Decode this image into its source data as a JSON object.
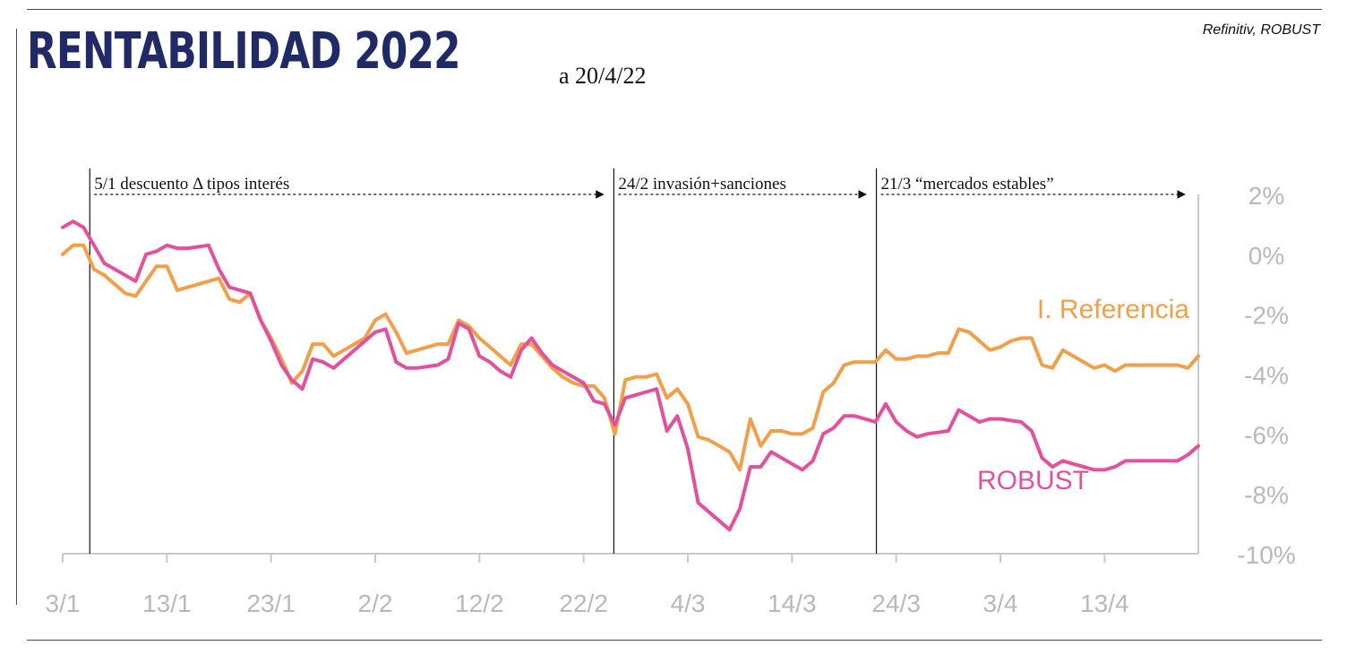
{
  "header": {
    "title": "RENTABILIDAD 2022",
    "subtitle": "a 20/4/22",
    "source": "Refinitiv, ROBUST"
  },
  "colors": {
    "referencia": "#f0a04b",
    "robust": "#e2529c",
    "axis": "#c9c9c9",
    "tick_text": "#b9b9b9",
    "title": "#1f2a66"
  },
  "chart_data": {
    "type": "line",
    "title": "RENTABILIDAD 2022",
    "xlabel": "",
    "ylabel": "",
    "x_tick_labels": [
      "3/1",
      "13/1",
      "23/1",
      "2/2",
      "12/2",
      "22/2",
      "4/3",
      "14/3",
      "24/3",
      "3/4",
      "13/4"
    ],
    "y_ticks": [
      2,
      0,
      -2,
      -4,
      -6,
      -8,
      -10
    ],
    "y_tick_labels": [
      "2%",
      "0%",
      "-2%",
      "-4%",
      "-6%",
      "-8%",
      "-10%"
    ],
    "ylim": [
      -10,
      2
    ],
    "xlim": [
      0,
      109
    ],
    "x_unit": "days since 3 Jan 2022",
    "annotations": [
      {
        "day": 2.6,
        "end_day": 52.4,
        "label": "5/1 descuento Δ tipos interés"
      },
      {
        "day": 52.9,
        "end_day": 77.6,
        "label": "24/2 invasión+sanciones"
      },
      {
        "day": 78.1,
        "end_day": 108.2,
        "label": "21/3 “mercados estables”"
      }
    ],
    "series": [
      {
        "name": "I. Referencia",
        "label": "I. Referencia",
        "color": "#f0a04b",
        "x": [
          0,
          1,
          2,
          3,
          4,
          5,
          6,
          7,
          8,
          9,
          10,
          11,
          12,
          13,
          14,
          15,
          16,
          17,
          18,
          19,
          20,
          21,
          22,
          23,
          24,
          25,
          26,
          27,
          28,
          29,
          30,
          31,
          32,
          33,
          34,
          35,
          36,
          37,
          38,
          39,
          40,
          41,
          42,
          43,
          44,
          45,
          46,
          47,
          48,
          49,
          50,
          51,
          52,
          53,
          54,
          55,
          56,
          57,
          58,
          59,
          60,
          61,
          62,
          63,
          64,
          65,
          66,
          67,
          68,
          69,
          70,
          71,
          72,
          73,
          74,
          75,
          76,
          77,
          78,
          79,
          80,
          81,
          82,
          83,
          84,
          85,
          86,
          87,
          88,
          89,
          90,
          91,
          92,
          93,
          94,
          95,
          96,
          97,
          98,
          99,
          100,
          101,
          102,
          103,
          104,
          105,
          106,
          107,
          108,
          109
        ],
        "y": [
          0,
          0.3,
          0.3,
          -0.5,
          -0.7,
          -1,
          -1.3,
          -1.4,
          -0.9,
          -0.4,
          -0.4,
          -1.2,
          -1.1,
          -1,
          -0.9,
          -0.8,
          -1.5,
          -1.6,
          -1.3,
          -2.2,
          -2.8,
          -3.5,
          -4.3,
          -3.9,
          -3,
          -3,
          -3.4,
          -3.2,
          -3,
          -2.8,
          -2.2,
          -2,
          -2.6,
          -3.3,
          -3.2,
          -3.1,
          -3,
          -3,
          -2.2,
          -2.4,
          -2.8,
          -3.1,
          -3.4,
          -3.7,
          -3,
          -3,
          -3.4,
          -3.8,
          -4.1,
          -4.3,
          -4.4,
          -4.4,
          -4.8,
          -6,
          -4.2,
          -4.1,
          -4.1,
          -4,
          -4.8,
          -4.5,
          -5,
          -6.1,
          -6.2,
          -6.4,
          -6.6,
          -7.2,
          -5.5,
          -6.4,
          -5.9,
          -5.9,
          -6,
          -6,
          -5.8,
          -4.6,
          -4.3,
          -3.7,
          -3.6,
          -3.6,
          -3.6,
          -3.2,
          -3.5,
          -3.5,
          -3.4,
          -3.4,
          -3.3,
          -3.3,
          -2.5,
          -2.6,
          -2.9,
          -3.2,
          -3.1,
          -2.9,
          -2.8,
          -2.8,
          -3.7,
          -3.8,
          -3.2,
          -3.4,
          -3.6,
          -3.8,
          -3.7,
          -3.9,
          -3.7,
          -3.7,
          -3.7,
          -3.7,
          -3.7,
          -3.7,
          -3.8,
          -3.4
        ]
      },
      {
        "name": "ROBUST",
        "label": "ROBUST",
        "color": "#e2529c",
        "x": [
          0,
          1,
          2,
          3,
          4,
          5,
          6,
          7,
          8,
          9,
          10,
          11,
          12,
          13,
          14,
          15,
          16,
          17,
          18,
          19,
          20,
          21,
          22,
          23,
          24,
          25,
          26,
          27,
          28,
          29,
          30,
          31,
          32,
          33,
          34,
          35,
          36,
          37,
          38,
          39,
          40,
          41,
          42,
          43,
          44,
          45,
          46,
          47,
          48,
          49,
          50,
          51,
          52,
          53,
          54,
          55,
          56,
          57,
          58,
          59,
          60,
          61,
          62,
          63,
          64,
          65,
          66,
          67,
          68,
          69,
          70,
          71,
          72,
          73,
          74,
          75,
          76,
          77,
          78,
          79,
          80,
          81,
          82,
          83,
          84,
          85,
          86,
          87,
          88,
          89,
          90,
          91,
          92,
          93,
          94,
          95,
          96,
          97,
          98,
          99,
          100,
          101,
          102,
          103,
          104,
          105,
          106,
          107,
          108,
          109
        ],
        "y": [
          0.9,
          1.1,
          0.9,
          0.3,
          -0.3,
          -0.5,
          -0.7,
          -0.9,
          0,
          0.1,
          0.3,
          0.2,
          0.2,
          0.25,
          0.3,
          -0.5,
          -1.1,
          -1.2,
          -1.3,
          -2.2,
          -2.9,
          -3.7,
          -4.2,
          -4.5,
          -3.5,
          -3.6,
          -3.8,
          -3.5,
          -3.2,
          -2.9,
          -2.6,
          -2.5,
          -3.6,
          -3.8,
          -3.8,
          -3.75,
          -3.7,
          -3.5,
          -2.3,
          -2.5,
          -3.4,
          -3.6,
          -3.9,
          -4.1,
          -3.2,
          -2.8,
          -3.3,
          -3.7,
          -3.9,
          -4.1,
          -4.3,
          -4.9,
          -5,
          -5.7,
          -4.8,
          -4.7,
          -4.6,
          -4.5,
          -5.9,
          -5.4,
          -6.5,
          -8.3,
          -8.6,
          -8.9,
          -9.2,
          -8.5,
          -7.1,
          -7.1,
          -6.6,
          -6.8,
          -7,
          -7.2,
          -6.9,
          -6,
          -5.8,
          -5.4,
          -5.4,
          -5.5,
          -5.6,
          -5,
          -5.6,
          -5.9,
          -6.1,
          -6,
          -5.95,
          -5.9,
          -5.2,
          -5.4,
          -5.6,
          -5.5,
          -5.5,
          -5.55,
          -5.6,
          -5.9,
          -6.8,
          -7.1,
          -6.9,
          -7,
          -7.1,
          -7.2,
          -7.2,
          -7.1,
          -6.9,
          -6.9,
          -6.9,
          -6.9,
          -6.9,
          -6.9,
          -6.7,
          -6.4
        ]
      }
    ]
  }
}
